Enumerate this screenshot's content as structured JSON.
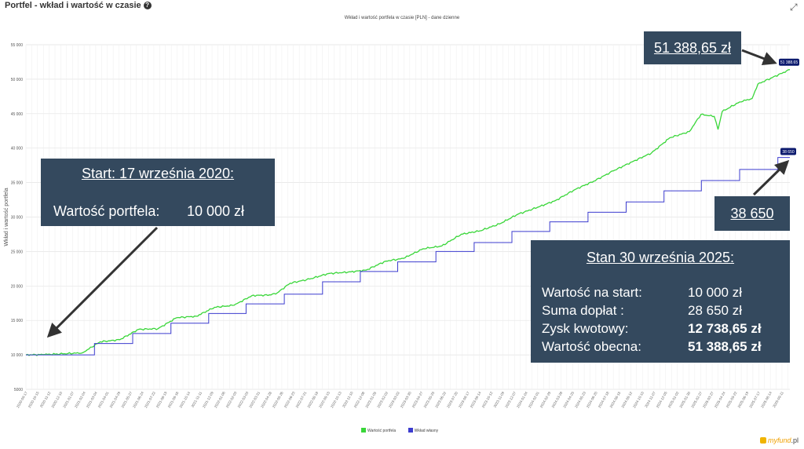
{
  "header": {
    "title": "Portfel - wkład i wartość w czasie",
    "info_icon": "info-icon",
    "expand_icon": "expand-icon"
  },
  "chart_data": {
    "type": "line",
    "title": "Wkład i wartość portfela w czasie [PLN] - dane dzienne",
    "ylabel": "Wkład i wartość portfela",
    "xlabel": "",
    "ylim": [
      5000,
      55000
    ],
    "y_ticks": [
      "5000",
      "10 000",
      "15 000",
      "20 000",
      "25 000",
      "30 000",
      "35 000",
      "40 000",
      "45 000",
      "50 000",
      "55 000"
    ],
    "x_range": [
      "2020-09-17",
      "2025-09-30"
    ],
    "grid": true,
    "legend_placement": "bottom",
    "series": [
      {
        "name": "Wartość portfela",
        "color": "#39d639",
        "points": [
          [
            "2020-09-17",
            10000
          ],
          [
            "2020-11-01",
            10050
          ],
          [
            "2020-12-15",
            10150
          ],
          [
            "2021-01-31",
            10300
          ],
          [
            "2021-03-15",
            11900
          ],
          [
            "2021-05-01",
            12200
          ],
          [
            "2021-06-15",
            13700
          ],
          [
            "2021-08-01",
            13800
          ],
          [
            "2021-09-15",
            15400
          ],
          [
            "2021-11-01",
            15600
          ],
          [
            "2021-12-15",
            16900
          ],
          [
            "2022-01-31",
            17200
          ],
          [
            "2022-03-15",
            18600
          ],
          [
            "2022-04-30",
            18700
          ],
          [
            "2022-05-15",
            19000
          ],
          [
            "2022-06-15",
            20400
          ],
          [
            "2022-08-01",
            21000
          ],
          [
            "2022-09-15",
            21800
          ],
          [
            "2022-11-01",
            22000
          ],
          [
            "2022-12-15",
            22300
          ],
          [
            "2023-01-31",
            23600
          ],
          [
            "2023-03-15",
            24000
          ],
          [
            "2023-05-01",
            25400
          ],
          [
            "2023-06-15",
            25800
          ],
          [
            "2023-08-01",
            27500
          ],
          [
            "2023-09-15",
            28000
          ],
          [
            "2023-11-01",
            29000
          ],
          [
            "2023-12-15",
            30400
          ],
          [
            "2024-01-31",
            31400
          ],
          [
            "2024-03-15",
            32400
          ],
          [
            "2024-05-01",
            34000
          ],
          [
            "2024-06-15",
            35200
          ],
          [
            "2024-08-01",
            36700
          ],
          [
            "2024-09-15",
            38000
          ],
          [
            "2024-11-01",
            39300
          ],
          [
            "2024-12-15",
            41500
          ],
          [
            "2025-01-31",
            42400
          ],
          [
            "2025-02-28",
            44900
          ],
          [
            "2025-04-01",
            44600
          ],
          [
            "2025-04-10",
            42700
          ],
          [
            "2025-04-20",
            45300
          ],
          [
            "2025-06-01",
            46700
          ],
          [
            "2025-07-01",
            47200
          ],
          [
            "2025-07-15",
            49300
          ],
          [
            "2025-09-30",
            51388.65
          ]
        ],
        "end_label": "51 388.65"
      },
      {
        "name": "Wkład własny",
        "color": "#3c3ccf",
        "steps": [
          [
            "2020-09-17",
            10000
          ],
          [
            "2021-03-01",
            11650
          ],
          [
            "2021-06-01",
            13100
          ],
          [
            "2021-09-01",
            14600
          ],
          [
            "2021-12-01",
            16000
          ],
          [
            "2022-03-01",
            17400
          ],
          [
            "2022-06-01",
            18800
          ],
          [
            "2022-09-01",
            20600
          ],
          [
            "2022-12-01",
            22100
          ],
          [
            "2023-03-01",
            23500
          ],
          [
            "2023-06-01",
            25000
          ],
          [
            "2023-09-01",
            26300
          ],
          [
            "2023-12-01",
            27900
          ],
          [
            "2024-03-01",
            29300
          ],
          [
            "2024-06-01",
            30700
          ],
          [
            "2024-09-01",
            32200
          ],
          [
            "2024-12-01",
            33800
          ],
          [
            "2025-03-01",
            35300
          ],
          [
            "2025-06-01",
            36900
          ],
          [
            "2025-09-01",
            38650
          ]
        ],
        "end": [
          "2025-09-30",
          38650
        ],
        "end_label": "38 650"
      }
    ]
  },
  "callouts": {
    "start": {
      "title": "Start: 17 września 2020:",
      "label": "Wartość portfela:",
      "value": "10 000 zł"
    },
    "final_value": "51 388,65 zł",
    "deposits": "38 650",
    "stats": {
      "title": "Stan 30 września 2025:",
      "rows": [
        {
          "label": "Wartość na start:",
          "value": "10 000 zł"
        },
        {
          "label": "Suma dopłat :",
          "value": "28 650 zł"
        },
        {
          "label": "Zysk kwotowy:",
          "value": "12 738,65 zł"
        },
        {
          "label": "Wartość obecna:",
          "value": "51 388,65 zł"
        }
      ]
    }
  },
  "legend": {
    "items": [
      "Wartość portfela",
      "Wkład własny"
    ]
  },
  "logo": {
    "text": "myfund",
    "suffix": ".pl"
  }
}
